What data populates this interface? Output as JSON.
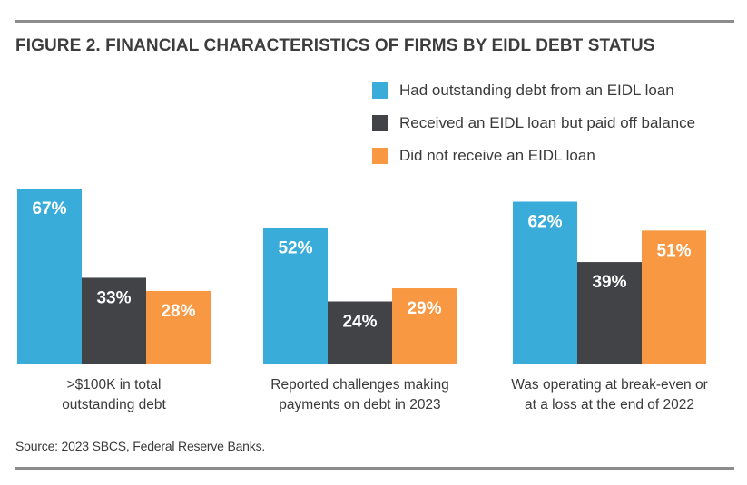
{
  "title": "FIGURE 2. FINANCIAL CHARACTERISTICS OF FIRMS BY EIDL DEBT STATUS",
  "source": "Source: 2023 SBCS, Federal Reserve Banks.",
  "colors": {
    "series1": "#39acd9",
    "series2": "#424347",
    "series3": "#f99842",
    "rule": "#8c8c8c"
  },
  "chart_data": {
    "type": "bar",
    "title": "FIGURE 2. FINANCIAL CHARACTERISTICS OF FIRMS BY EIDL DEBT STATUS",
    "categories": [
      [
        ">$100K in total",
        "outstanding debt"
      ],
      [
        "Reported challenges making",
        "payments on debt in 2023"
      ],
      [
        "Was operating at break-even or",
        "at a loss at the end of 2022"
      ]
    ],
    "series": [
      {
        "name": "Had outstanding debt from an EIDL loan",
        "values": [
          67,
          52,
          62
        ],
        "labels": [
          "67%",
          "52%",
          "62%"
        ]
      },
      {
        "name": "Received an EIDL loan but paid off balance",
        "values": [
          33,
          24,
          39
        ],
        "labels": [
          "33%",
          "24%",
          "39%"
        ]
      },
      {
        "name": "Did not receive an EIDL loan",
        "values": [
          28,
          29,
          51
        ],
        "labels": [
          "28%",
          "29%",
          "51%"
        ]
      }
    ],
    "ylim": [
      0,
      67
    ],
    "grid": false,
    "legend": "top-right"
  }
}
